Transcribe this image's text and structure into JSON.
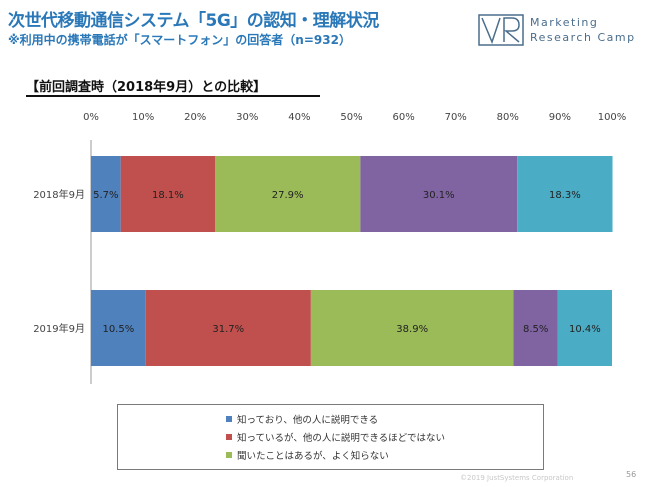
{
  "header": {
    "title": "次世代移動通信システム「5G」の認知・理解状況",
    "subtitle": "※利用中の携帯電話が「スマートフォン」の回答者（n=932）"
  },
  "logo": {
    "line1": "Marketing",
    "line2": "Research Camp"
  },
  "section": {
    "heading": "【前回調査時（2018年9月）との比較】"
  },
  "chart_data": {
    "type": "bar",
    "orientation": "horizontal",
    "stacked": true,
    "categories": [
      "2018年9月",
      "2019年9月"
    ],
    "x_ticks": [
      "0%",
      "10%",
      "20%",
      "30%",
      "40%",
      "50%",
      "60%",
      "70%",
      "80%",
      "90%",
      "100%"
    ],
    "xlim": [
      0,
      100
    ],
    "series": [
      {
        "name": "知っており、他の人に説明できる",
        "color": "#4f81bd",
        "values": [
          5.7,
          10.5
        ],
        "labels": [
          "5.7%",
          "10.5%"
        ]
      },
      {
        "name": "知っているが、他の人に説明できるほどではない",
        "color": "#c0504d",
        "values": [
          18.1,
          31.7
        ],
        "labels": [
          "18.1%",
          "31.7%"
        ]
      },
      {
        "name": "聞いたことはあるが、よく知らない",
        "color": "#9bbb59",
        "values": [
          27.9,
          38.9
        ],
        "labels": [
          "27.9%",
          "38.9%"
        ]
      },
      {
        "name": "",
        "color": "#8064a2",
        "values": [
          30.1,
          8.5
        ],
        "labels": [
          "30.1%",
          "8.5%"
        ]
      },
      {
        "name": "",
        "color": "#4bacc6",
        "values": [
          18.3,
          10.4
        ],
        "labels": [
          "18.3%",
          "10.4%"
        ]
      }
    ],
    "legend_entries": [
      "知っており、他の人に説明できる",
      "知っているが、他の人に説明できるほどではない",
      "聞いたことはあるが、よく知らない"
    ],
    "legend_colors": [
      "#4f81bd",
      "#c0504d",
      "#9bbb59"
    ],
    "legend_placement": "bottom",
    "grid": false
  },
  "footer": {
    "copyright": "©2019 JustSystems Corporation",
    "page": "56"
  }
}
